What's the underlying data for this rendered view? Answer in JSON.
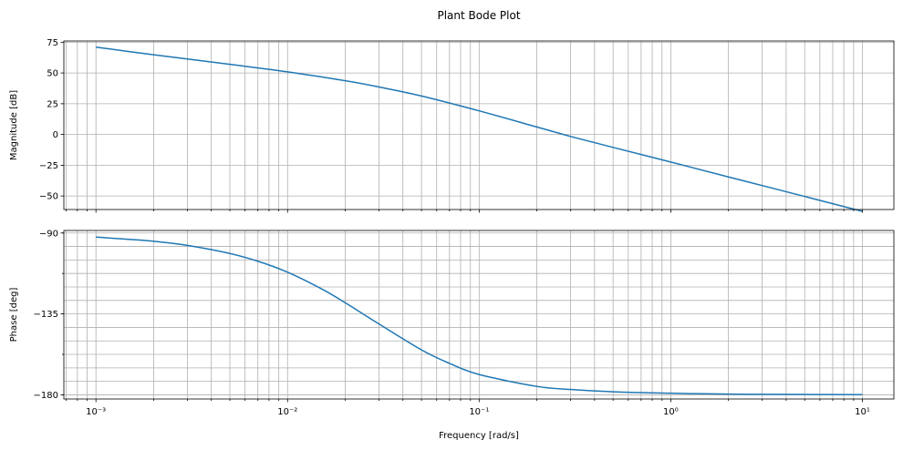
{
  "figure": {
    "title": "Plant Bode Plot"
  },
  "chart_data": [
    {
      "type": "line",
      "title": "",
      "xlabel": "",
      "ylabel": "Magnitude [dB]",
      "xscale": "log",
      "xlim": [
        0.00068,
        14.6
      ],
      "ylim": [
        -61,
        76
      ],
      "yticks": [
        75,
        50,
        25,
        0,
        -25,
        -50
      ],
      "ytick_labels": [
        "75",
        "50",
        "25",
        "0",
        "−25",
        "−50"
      ],
      "grid": true,
      "series": [
        {
          "color": "#1f77b4",
          "x": [
            0.001,
            0.002,
            0.003,
            0.005,
            0.01,
            0.02,
            0.03,
            0.05,
            0.1,
            0.2,
            0.3,
            0.5,
            1,
            2,
            3,
            5,
            10
          ],
          "y": [
            71,
            64.8,
            61.4,
            57,
            50.9,
            43.7,
            38.6,
            31.3,
            19.2,
            6.1,
            -1.6,
            -10.5,
            -22.4,
            -34.5,
            -41.5,
            -50.4,
            -62.5
          ]
        }
      ]
    },
    {
      "type": "line",
      "title": "",
      "xlabel": "Frequency [rad/s]",
      "ylabel": "Phase [deg]",
      "xscale": "log",
      "xlim": [
        0.00068,
        14.6
      ],
      "ylim": [
        -182.3,
        -88.6
      ],
      "yticks": [
        -90,
        -135,
        -180
      ],
      "ytick_labels": [
        "−90",
        "−135",
        "−180"
      ],
      "xticks": [
        0.001,
        0.01,
        0.1,
        1,
        10
      ],
      "xtick_labels": [
        "10⁻³",
        "10⁻²",
        "10⁻¹",
        "10⁰",
        "10¹"
      ],
      "grid": true,
      "series": [
        {
          "color": "#1f77b4",
          "x": [
            0.001,
            0.002,
            0.003,
            0.005,
            0.007,
            0.01,
            0.015,
            0.02,
            0.03,
            0.05,
            0.07,
            0.1,
            0.2,
            0.3,
            0.5,
            1,
            2,
            3,
            5,
            10
          ],
          "y": [
            -92.3,
            -94.6,
            -96.9,
            -101.4,
            -105.7,
            -111.8,
            -121.0,
            -128.8,
            -140.6,
            -155.0,
            -162.5,
            -168.7,
            -175.3,
            -177.0,
            -178.3,
            -179.1,
            -179.6,
            -179.7,
            -179.8,
            -179.9
          ]
        }
      ]
    }
  ]
}
